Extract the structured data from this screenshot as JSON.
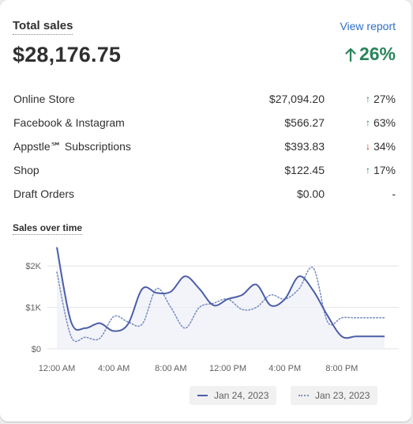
{
  "header": {
    "title": "Total sales",
    "view_report": "View report",
    "total": "$28,176.75",
    "change": "26%"
  },
  "channels": [
    {
      "name": "Online Store",
      "value": "$27,094.20",
      "change": "27%",
      "direction": "up"
    },
    {
      "name": "Facebook & Instagram",
      "value": "$566.27",
      "change": "63%",
      "direction": "up"
    },
    {
      "name": "Appstle℠ Subscriptions",
      "value": "$393.83",
      "change": "34%",
      "direction": "down"
    },
    {
      "name": "Shop",
      "value": "$122.45",
      "change": "17%",
      "direction": "up"
    },
    {
      "name": "Draft Orders",
      "value": "$0.00",
      "change": "-",
      "direction": "none"
    }
  ],
  "colors": {
    "accent_link": "#2c6ecb",
    "positive": "#29845a",
    "negative": "#c5280c",
    "series_current": "#4b5ea9",
    "series_previous": "#7a8fc4"
  },
  "chart_data": {
    "type": "line",
    "title": "Sales over time",
    "x": [
      "12:00 AM",
      "1:00 AM",
      "2:00 AM",
      "3:00 AM",
      "4:00 AM",
      "5:00 AM",
      "6:00 AM",
      "7:00 AM",
      "8:00 AM",
      "9:00 AM",
      "10:00 AM",
      "11:00 AM",
      "12:00 PM",
      "1:00 PM",
      "2:00 PM",
      "3:00 PM",
      "4:00 PM",
      "5:00 PM",
      "6:00 PM",
      "7:00 PM",
      "8:00 PM",
      "9:00 PM",
      "10:00 PM",
      "11:00 PM"
    ],
    "x_tick_labels": [
      "12:00 AM",
      "4:00 AM",
      "8:00 AM",
      "12:00 PM",
      "4:00 PM",
      "8:00 PM"
    ],
    "y_tick_labels": [
      "$0",
      "$1K",
      "$2K"
    ],
    "ylim": [
      0,
      2500
    ],
    "grid": true,
    "series": [
      {
        "name": "Jan 24, 2023",
        "style": "solid",
        "values": [
          2450,
          650,
          500,
          620,
          430,
          600,
          1450,
          1350,
          1380,
          1750,
          1450,
          1050,
          1200,
          1300,
          1550,
          1050,
          1200,
          1750,
          1400,
          800,
          300,
          300,
          300,
          300
        ]
      },
      {
        "name": "Jan 23, 2023",
        "style": "dotted",
        "values": [
          1850,
          300,
          280,
          250,
          780,
          650,
          600,
          1450,
          1000,
          500,
          1000,
          1100,
          1200,
          950,
          1000,
          1300,
          1200,
          1450,
          1950,
          650,
          750,
          750,
          750,
          750
        ]
      }
    ]
  }
}
